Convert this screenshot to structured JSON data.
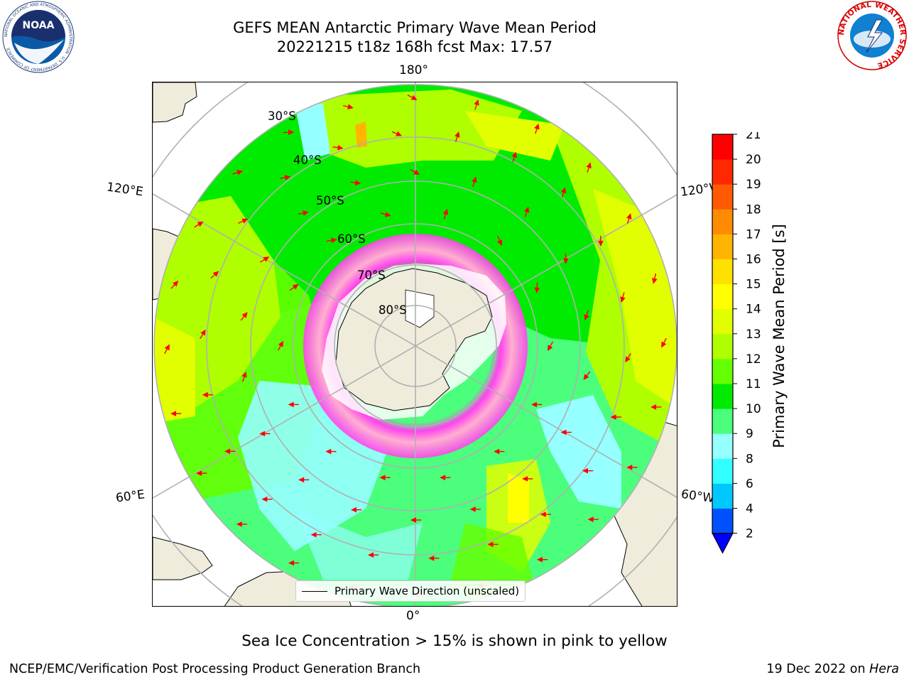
{
  "title": {
    "line1": "GEFS MEAN Antarctic Primary Wave Mean Period",
    "line2": "20221215 t18z 168h fcst   Max: 17.57"
  },
  "logos": {
    "left": "NOAA",
    "left_ring_text": "NATIONAL OCEANIC AND ATMOSPHERIC ADMINISTRATION · U.S. DEPARTMENT OF COMMERCE",
    "right_ring_text": "NATIONAL WEATHER SERVICE"
  },
  "map": {
    "longitude_labels": {
      "top": "180°",
      "bottom": "0°",
      "upper_left": "120°E",
      "upper_right": "120°W",
      "lower_left": "60°E",
      "lower_right": "60°W"
    },
    "latitude_labels": [
      "30°S",
      "40°S",
      "50°S",
      "60°S",
      "70°S",
      "80°S"
    ],
    "legend_label": "Primary Wave Direction (unscaled)",
    "land_color": "#efecdc",
    "arrow_color": "#ff0000"
  },
  "colorbar": {
    "label": "Primary Wave Mean Period [s]",
    "ticks": [
      "2",
      "4",
      "6",
      "8",
      "9",
      "10",
      "11",
      "12",
      "13",
      "14",
      "15",
      "16",
      "17",
      "18",
      "19",
      "20",
      "21"
    ],
    "colors": [
      "#0050ff",
      "#00c8ff",
      "#32ffff",
      "#96ffff",
      "#4bff7d",
      "#00eb00",
      "#64ff00",
      "#afff00",
      "#e1ff00",
      "#ffff00",
      "#ffe100",
      "#ffb400",
      "#ff8c00",
      "#ff5a00",
      "#ff2800",
      "#ff0000"
    ],
    "extend_color": "#0000ff"
  },
  "caption": "Sea Ice Concentration > 15% is shown in pink to yellow",
  "footer": {
    "left": "NCEP/EMC/Verification Post Processing Product Generation Branch",
    "right_prefix": "19 Dec 2022 on ",
    "right_host": "Hera"
  }
}
